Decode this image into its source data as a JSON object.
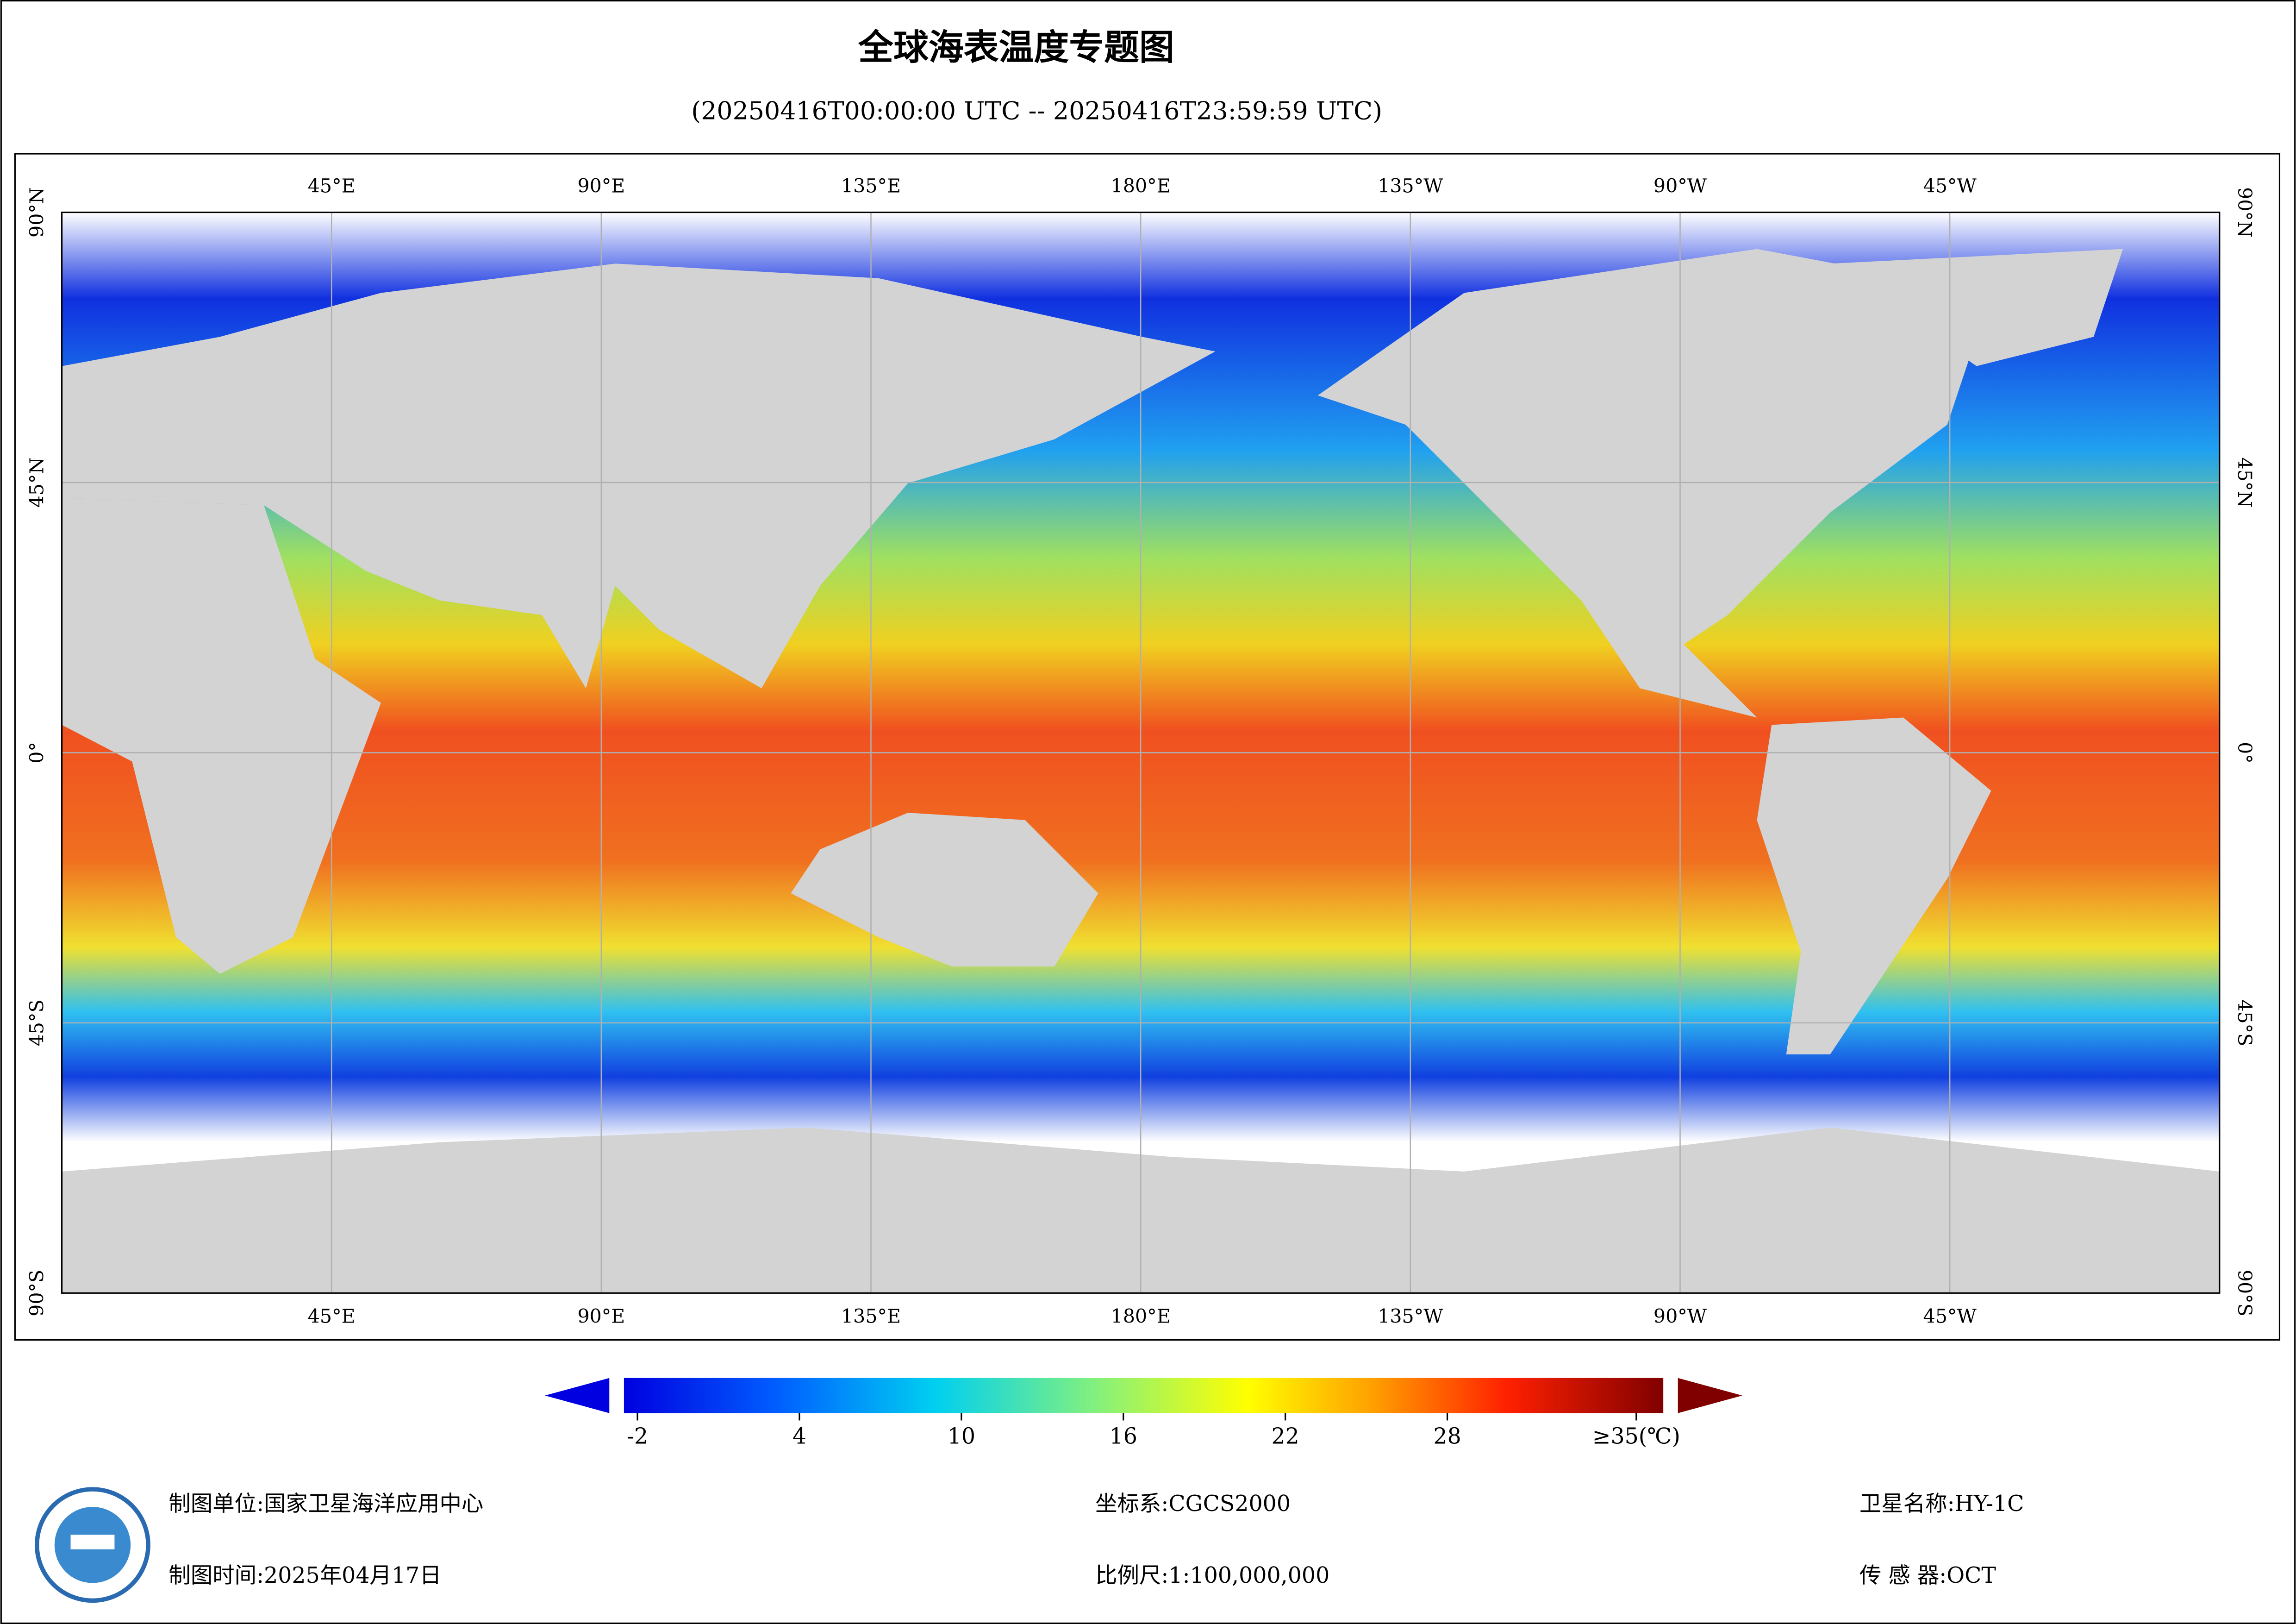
{
  "title": "全球海表温度专题图",
  "subtitle": "(20250416T00:00:00 UTC -- 20250416T23:59:59 UTC)",
  "map": {
    "lonlim": [
      0,
      360
    ],
    "latlim": [
      -90,
      90
    ],
    "grid": true,
    "lon_ticks": [
      {
        "value": 45,
        "label": "45°E"
      },
      {
        "value": 90,
        "label": "90°E"
      },
      {
        "value": 135,
        "label": "135°E"
      },
      {
        "value": 180,
        "label": "180°E"
      },
      {
        "value": 225,
        "label": "135°W"
      },
      {
        "value": 270,
        "label": "90°W"
      },
      {
        "value": 315,
        "label": "45°W"
      }
    ],
    "lat_ticks": [
      {
        "value": 90,
        "label": "90°N"
      },
      {
        "value": 45,
        "label": "45°N"
      },
      {
        "value": 0,
        "label": "0°"
      },
      {
        "value": -45,
        "label": "45°S"
      },
      {
        "value": -90,
        "label": "90°S"
      }
    ]
  },
  "colorbar": {
    "lim": [
      -2.5,
      36
    ],
    "ticks": [
      -2,
      4,
      10,
      16,
      22,
      28,
      {
        "value": 35,
        "label": "≥35(℃)"
      }
    ]
  },
  "footer": {
    "unit": "制图单位:国家卫星海洋应用中心",
    "time": "制图时间:2025年04月17日",
    "crs": "坐标系:CGCS2000",
    "scale": "比例尺:1:100,000,000",
    "satellite": "卫星名称:HY-1C",
    "sensor": "传 感 器:OCT"
  }
}
